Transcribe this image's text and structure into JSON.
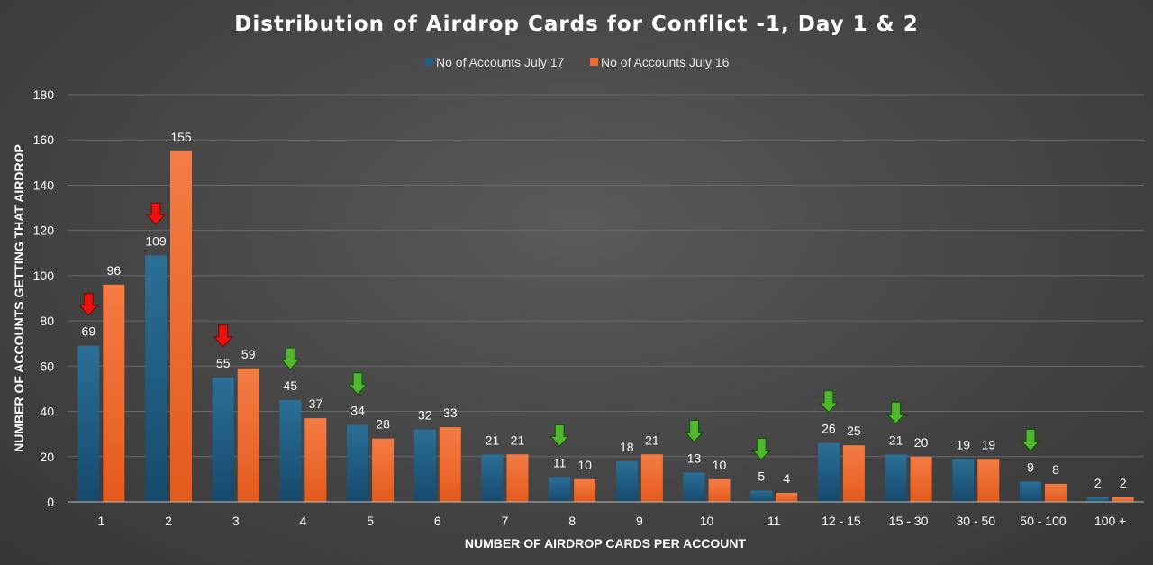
{
  "chart_data": {
    "type": "bar",
    "title": "Distribution of Airdrop Cards for Conflict -1, Day 1 & 2",
    "xlabel": "NUMBER OF AIRDROP CARDS PER ACCOUNT",
    "ylabel": "NUMBER OF ACCOUNTS GETTING THAT AIRDROP",
    "ylim": [
      0,
      180
    ],
    "yticks": [
      0,
      20,
      40,
      60,
      80,
      100,
      120,
      140,
      160,
      180
    ],
    "grid": true,
    "legend_position": "top",
    "categories": [
      "1",
      "2",
      "3",
      "4",
      "5",
      "6",
      "7",
      "8",
      "9",
      "10",
      "11",
      "12 - 15",
      "15 - 30",
      "30 - 50",
      "50 - 100",
      "100 +"
    ],
    "series": [
      {
        "name": "No of Accounts July 17",
        "color": "#1f5f86",
        "values": [
          69,
          109,
          55,
          45,
          34,
          32,
          21,
          11,
          18,
          13,
          5,
          26,
          21,
          19,
          9,
          2
        ]
      },
      {
        "name": "No of Accounts July 16",
        "color": "#ee6a30",
        "values": [
          96,
          155,
          59,
          37,
          28,
          33,
          21,
          10,
          21,
          10,
          4,
          25,
          20,
          19,
          8,
          2
        ]
      }
    ],
    "annotations": [
      {
        "category": "1",
        "type": "arrow-down",
        "color": "red"
      },
      {
        "category": "2",
        "type": "arrow-down",
        "color": "red"
      },
      {
        "category": "3",
        "type": "arrow-down",
        "color": "red"
      },
      {
        "category": "4",
        "type": "arrow-down",
        "color": "green"
      },
      {
        "category": "5",
        "type": "arrow-down",
        "color": "green"
      },
      {
        "category": "8",
        "type": "arrow-down",
        "color": "green"
      },
      {
        "category": "10",
        "type": "arrow-down",
        "color": "green"
      },
      {
        "category": "11",
        "type": "arrow-down",
        "color": "green"
      },
      {
        "category": "12 - 15",
        "type": "arrow-down",
        "color": "green"
      },
      {
        "category": "15 - 30",
        "type": "arrow-down",
        "color": "green"
      },
      {
        "category": "50 - 100",
        "type": "arrow-down",
        "color": "green"
      }
    ]
  }
}
